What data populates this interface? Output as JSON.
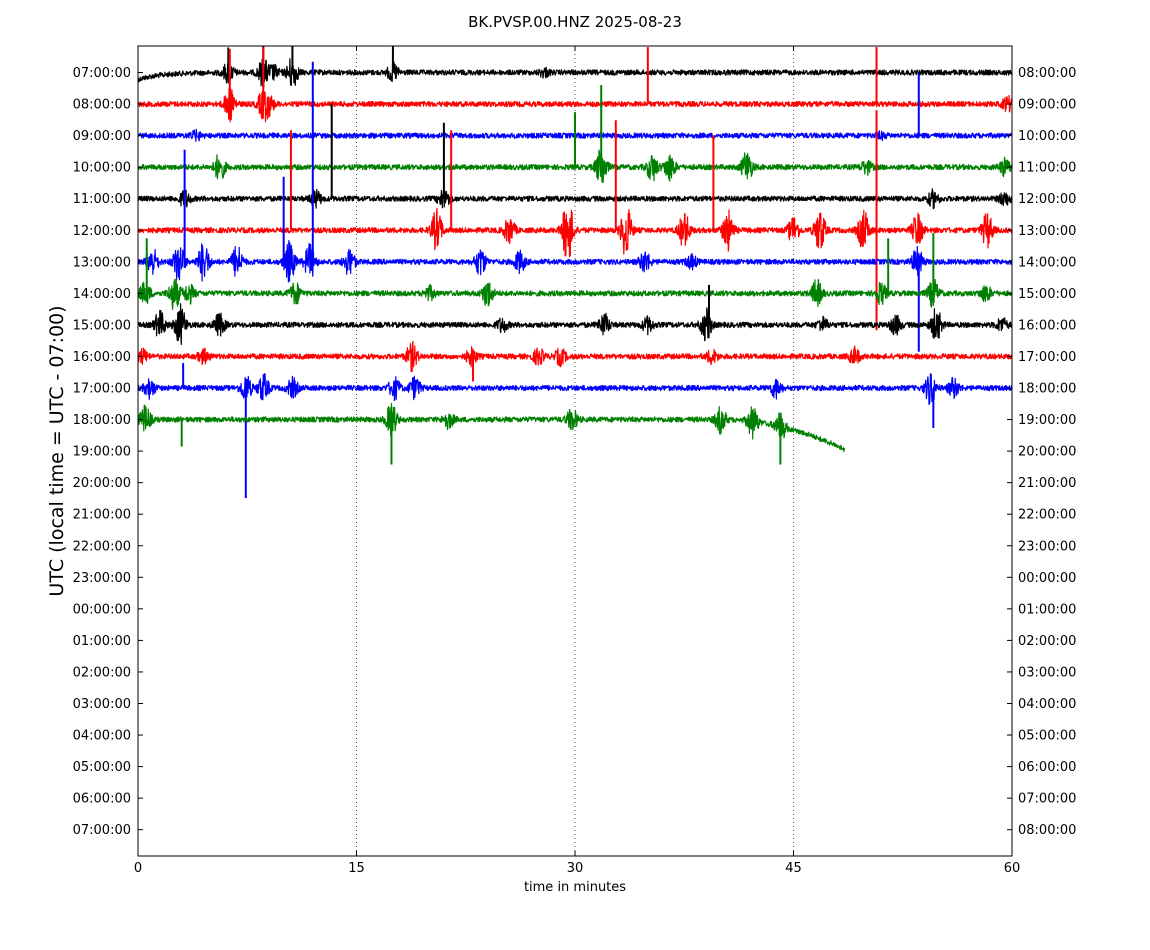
{
  "chart_data": {
    "type": "line",
    "title": "BK.PVSP.00.HNZ 2025-08-23",
    "xlabel": "time in minutes",
    "ylabel": "UTC (local time = UTC - 07:00)",
    "xlim": [
      0,
      60
    ],
    "x_ticks": [
      0,
      15,
      30,
      45,
      60
    ],
    "x_tick_labels": [
      "0",
      "15",
      "30",
      "45",
      "60"
    ],
    "grid": "vertical dotted at 15, 30, 45",
    "left_tick_labels": [
      "07:00:00",
      "08:00:00",
      "09:00:00",
      "10:00:00",
      "11:00:00",
      "12:00:00",
      "13:00:00",
      "14:00:00",
      "15:00:00",
      "16:00:00",
      "17:00:00",
      "18:00:00",
      "19:00:00",
      "20:00:00",
      "21:00:00",
      "22:00:00",
      "23:00:00",
      "00:00:00",
      "01:00:00",
      "02:00:00",
      "03:00:00",
      "04:00:00",
      "05:00:00",
      "06:00:00",
      "07:00:00"
    ],
    "right_tick_labels": [
      "08:00:00",
      "09:00:00",
      "10:00:00",
      "11:00:00",
      "12:00:00",
      "13:00:00",
      "14:00:00",
      "15:00:00",
      "16:00:00",
      "17:00:00",
      "18:00:00",
      "19:00:00",
      "20:00:00",
      "21:00:00",
      "22:00:00",
      "23:00:00",
      "00:00:00",
      "01:00:00",
      "02:00:00",
      "03:00:00",
      "04:00:00",
      "05:00:00",
      "06:00:00",
      "07:00:00",
      "08:00:00"
    ],
    "traces": [
      {
        "row": 0,
        "color": "#000000",
        "end_min": 60,
        "bursts": [
          [
            6.2,
            0.8
          ],
          [
            8.6,
            1.0
          ],
          [
            9.3,
            0.5
          ],
          [
            10.6,
            1.2
          ],
          [
            17.5,
            0.7
          ],
          [
            27.9,
            0.3
          ]
        ],
        "spikes": [
          [
            6.2,
            -25
          ],
          [
            8.6,
            -28
          ],
          [
            10.6,
            -30
          ],
          [
            17.5,
            -28
          ]
        ]
      },
      {
        "row": 1,
        "color": "#ff0000",
        "end_min": 60,
        "bursts": [
          [
            6.3,
            1.2
          ],
          [
            8.6,
            1.0
          ],
          [
            9.0,
            0.6
          ],
          [
            59.7,
            0.5
          ]
        ],
        "spikes": [
          [
            6.3,
            -55
          ],
          [
            8.6,
            -57
          ],
          [
            35.0,
            -57
          ],
          [
            50.7,
            -57
          ]
        ]
      },
      {
        "row": 2,
        "color": "#0000ff",
        "end_min": 60,
        "bursts": [
          [
            4.0,
            0.3
          ],
          [
            51.0,
            0.2
          ]
        ],
        "spikes": [
          [
            53.6,
            -62
          ]
        ]
      },
      {
        "row": 3,
        "color": "#008000",
        "end_min": 60,
        "bursts": [
          [
            5.6,
            1.0
          ],
          [
            31.8,
            1.5
          ],
          [
            35.3,
            1.0
          ],
          [
            36.5,
            1.0
          ],
          [
            41.8,
            1.2
          ],
          [
            50.0,
            0.5
          ],
          [
            59.5,
            0.6
          ]
        ],
        "spikes": [
          [
            31.8,
            -82
          ],
          [
            30.0,
            -55
          ]
        ]
      },
      {
        "row": 4,
        "color": "#000000",
        "end_min": 60,
        "bursts": [
          [
            3.2,
            0.6
          ],
          [
            12.2,
            0.6
          ],
          [
            21.0,
            0.8
          ],
          [
            54.6,
            0.6
          ],
          [
            59.5,
            0.5
          ]
        ],
        "spikes": [
          [
            13.3,
            -95
          ],
          [
            21.0,
            -76
          ]
        ]
      },
      {
        "row": 5,
        "color": "#ff0000",
        "end_min": 60,
        "bursts": [
          [
            20.5,
            1.5
          ],
          [
            25.5,
            1.0
          ],
          [
            29.5,
            2.5
          ],
          [
            33.5,
            2.0
          ],
          [
            37.5,
            1.3
          ],
          [
            40.5,
            1.5
          ],
          [
            45.0,
            1.0
          ],
          [
            46.8,
            1.6
          ],
          [
            49.8,
            1.5
          ],
          [
            53.5,
            1.2
          ],
          [
            58.3,
            1.3
          ]
        ],
        "spikes": [
          [
            10.5,
            -100
          ],
          [
            21.5,
            -100
          ],
          [
            32.8,
            -110
          ],
          [
            39.5,
            -95
          ],
          [
            50.7,
            -120
          ],
          [
            50.7,
            100
          ]
        ]
      },
      {
        "row": 6,
        "color": "#0000ff",
        "end_min": 60,
        "bursts": [
          [
            1.0,
            1.0
          ],
          [
            2.8,
            1.5
          ],
          [
            4.5,
            1.5
          ],
          [
            6.8,
            1.2
          ],
          [
            10.4,
            1.5
          ],
          [
            11.8,
            1.3
          ],
          [
            14.5,
            1.0
          ],
          [
            23.5,
            1.0
          ],
          [
            26.2,
            0.8
          ],
          [
            34.8,
            0.8
          ],
          [
            38.0,
            0.5
          ],
          [
            53.5,
            1.0
          ]
        ],
        "spikes": [
          [
            12.0,
            -200
          ],
          [
            3.2,
            -112
          ],
          [
            10.0,
            -85
          ],
          [
            53.6,
            90
          ]
        ]
      },
      {
        "row": 7,
        "color": "#008000",
        "end_min": 60,
        "bursts": [
          [
            0.5,
            0.8
          ],
          [
            2.5,
            1.2
          ],
          [
            3.5,
            0.7
          ],
          [
            10.8,
            0.8
          ],
          [
            20.0,
            0.5
          ],
          [
            24.0,
            1.0
          ],
          [
            46.6,
            1.0
          ],
          [
            51.0,
            0.8
          ],
          [
            54.6,
            1.0
          ],
          [
            58.2,
            0.6
          ]
        ],
        "spikes": [
          [
            0.6,
            -55
          ],
          [
            54.6,
            -60
          ],
          [
            51.5,
            -55
          ]
        ]
      },
      {
        "row": 8,
        "color": "#000000",
        "end_min": 60,
        "bursts": [
          [
            1.5,
            1.0
          ],
          [
            2.9,
            1.5
          ],
          [
            5.6,
            0.8
          ],
          [
            25.0,
            0.5
          ],
          [
            32.0,
            0.8
          ],
          [
            35.0,
            0.6
          ],
          [
            39.0,
            1.2
          ],
          [
            47.0,
            0.5
          ],
          [
            52.0,
            0.7
          ],
          [
            54.8,
            1.2
          ],
          [
            59.3,
            0.5
          ]
        ],
        "spikes": [
          [
            39.2,
            -40
          ]
        ]
      },
      {
        "row": 9,
        "color": "#ff0000",
        "end_min": 60,
        "bursts": [
          [
            0.3,
            0.5
          ],
          [
            4.5,
            0.5
          ],
          [
            18.8,
            1.0
          ],
          [
            22.9,
            0.6
          ],
          [
            27.5,
            0.6
          ],
          [
            29.0,
            0.6
          ],
          [
            39.4,
            0.5
          ],
          [
            49.2,
            0.6
          ]
        ],
        "spikes": [
          [
            23.0,
            25
          ]
        ]
      },
      {
        "row": 10,
        "color": "#0000ff",
        "end_min": 60,
        "bursts": [
          [
            0.8,
            0.7
          ],
          [
            7.4,
            1.0
          ],
          [
            8.6,
            1.0
          ],
          [
            10.6,
            0.7
          ],
          [
            17.6,
            0.8
          ],
          [
            19.0,
            0.8
          ],
          [
            43.8,
            0.7
          ],
          [
            54.4,
            1.2
          ],
          [
            56.0,
            0.7
          ]
        ],
        "spikes": [
          [
            7.4,
            110
          ],
          [
            3.1,
            -25
          ],
          [
            54.6,
            40
          ]
        ]
      },
      {
        "row": 11,
        "color": "#008000",
        "end_min": 48.5,
        "tail_droop": true,
        "bursts": [
          [
            0.5,
            1.0
          ],
          [
            17.4,
            1.2
          ],
          [
            21.3,
            0.6
          ],
          [
            29.8,
            0.8
          ],
          [
            40.0,
            1.0
          ],
          [
            42.2,
            1.2
          ],
          [
            44.1,
            1.0
          ]
        ],
        "spikes": [
          [
            17.4,
            45
          ],
          [
            3.0,
            27
          ],
          [
            44.1,
            45
          ]
        ]
      }
    ]
  }
}
